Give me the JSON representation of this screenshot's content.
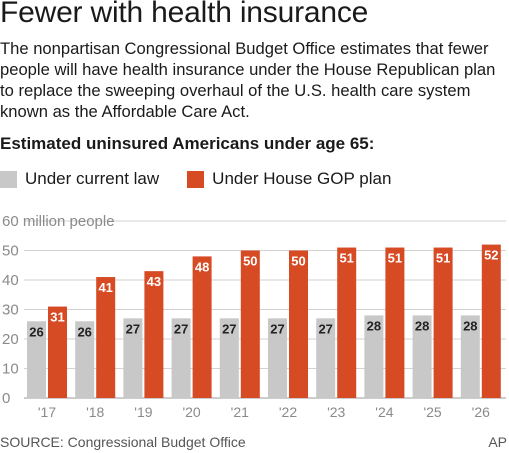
{
  "header": {
    "title": "Fewer with health insurance",
    "description": "The nonpartisan Congressional Budget Office estimates that fewer people will have health insurance under the House Republican plan to replace the sweeping overhaul of the U.S. health care system known as the Affordable Care Act.",
    "subhead": "Estimated uninsured Americans under age 65:"
  },
  "legend": {
    "current_label": "Under current law",
    "gop_label": "Under House GOP plan"
  },
  "colors": {
    "current": "#c8c8c8",
    "gop": "#d64a24",
    "grid": "#d2d2d2",
    "axis_text": "#8a8a8a"
  },
  "chart_data": {
    "type": "bar",
    "categories": [
      "'17",
      "'18",
      "'19",
      "'20",
      "'21",
      "'22",
      "'23",
      "'24",
      "'25",
      "'26"
    ],
    "series": [
      {
        "name": "Under current law",
        "values": [
          26,
          26,
          27,
          27,
          27,
          27,
          27,
          28,
          28,
          28
        ]
      },
      {
        "name": "Under House GOP plan",
        "values": [
          31,
          41,
          43,
          48,
          50,
          50,
          51,
          51,
          51,
          52
        ]
      }
    ],
    "ylim": [
      0,
      60
    ],
    "yticks": [
      0,
      10,
      20,
      30,
      40,
      50,
      60
    ],
    "ytick_labels": [
      "0",
      "10",
      "20",
      "30",
      "40",
      "50",
      "60 million people"
    ],
    "grid": true
  },
  "footer": {
    "source": "SOURCE: Congressional Budget Office",
    "credit": "AP"
  }
}
